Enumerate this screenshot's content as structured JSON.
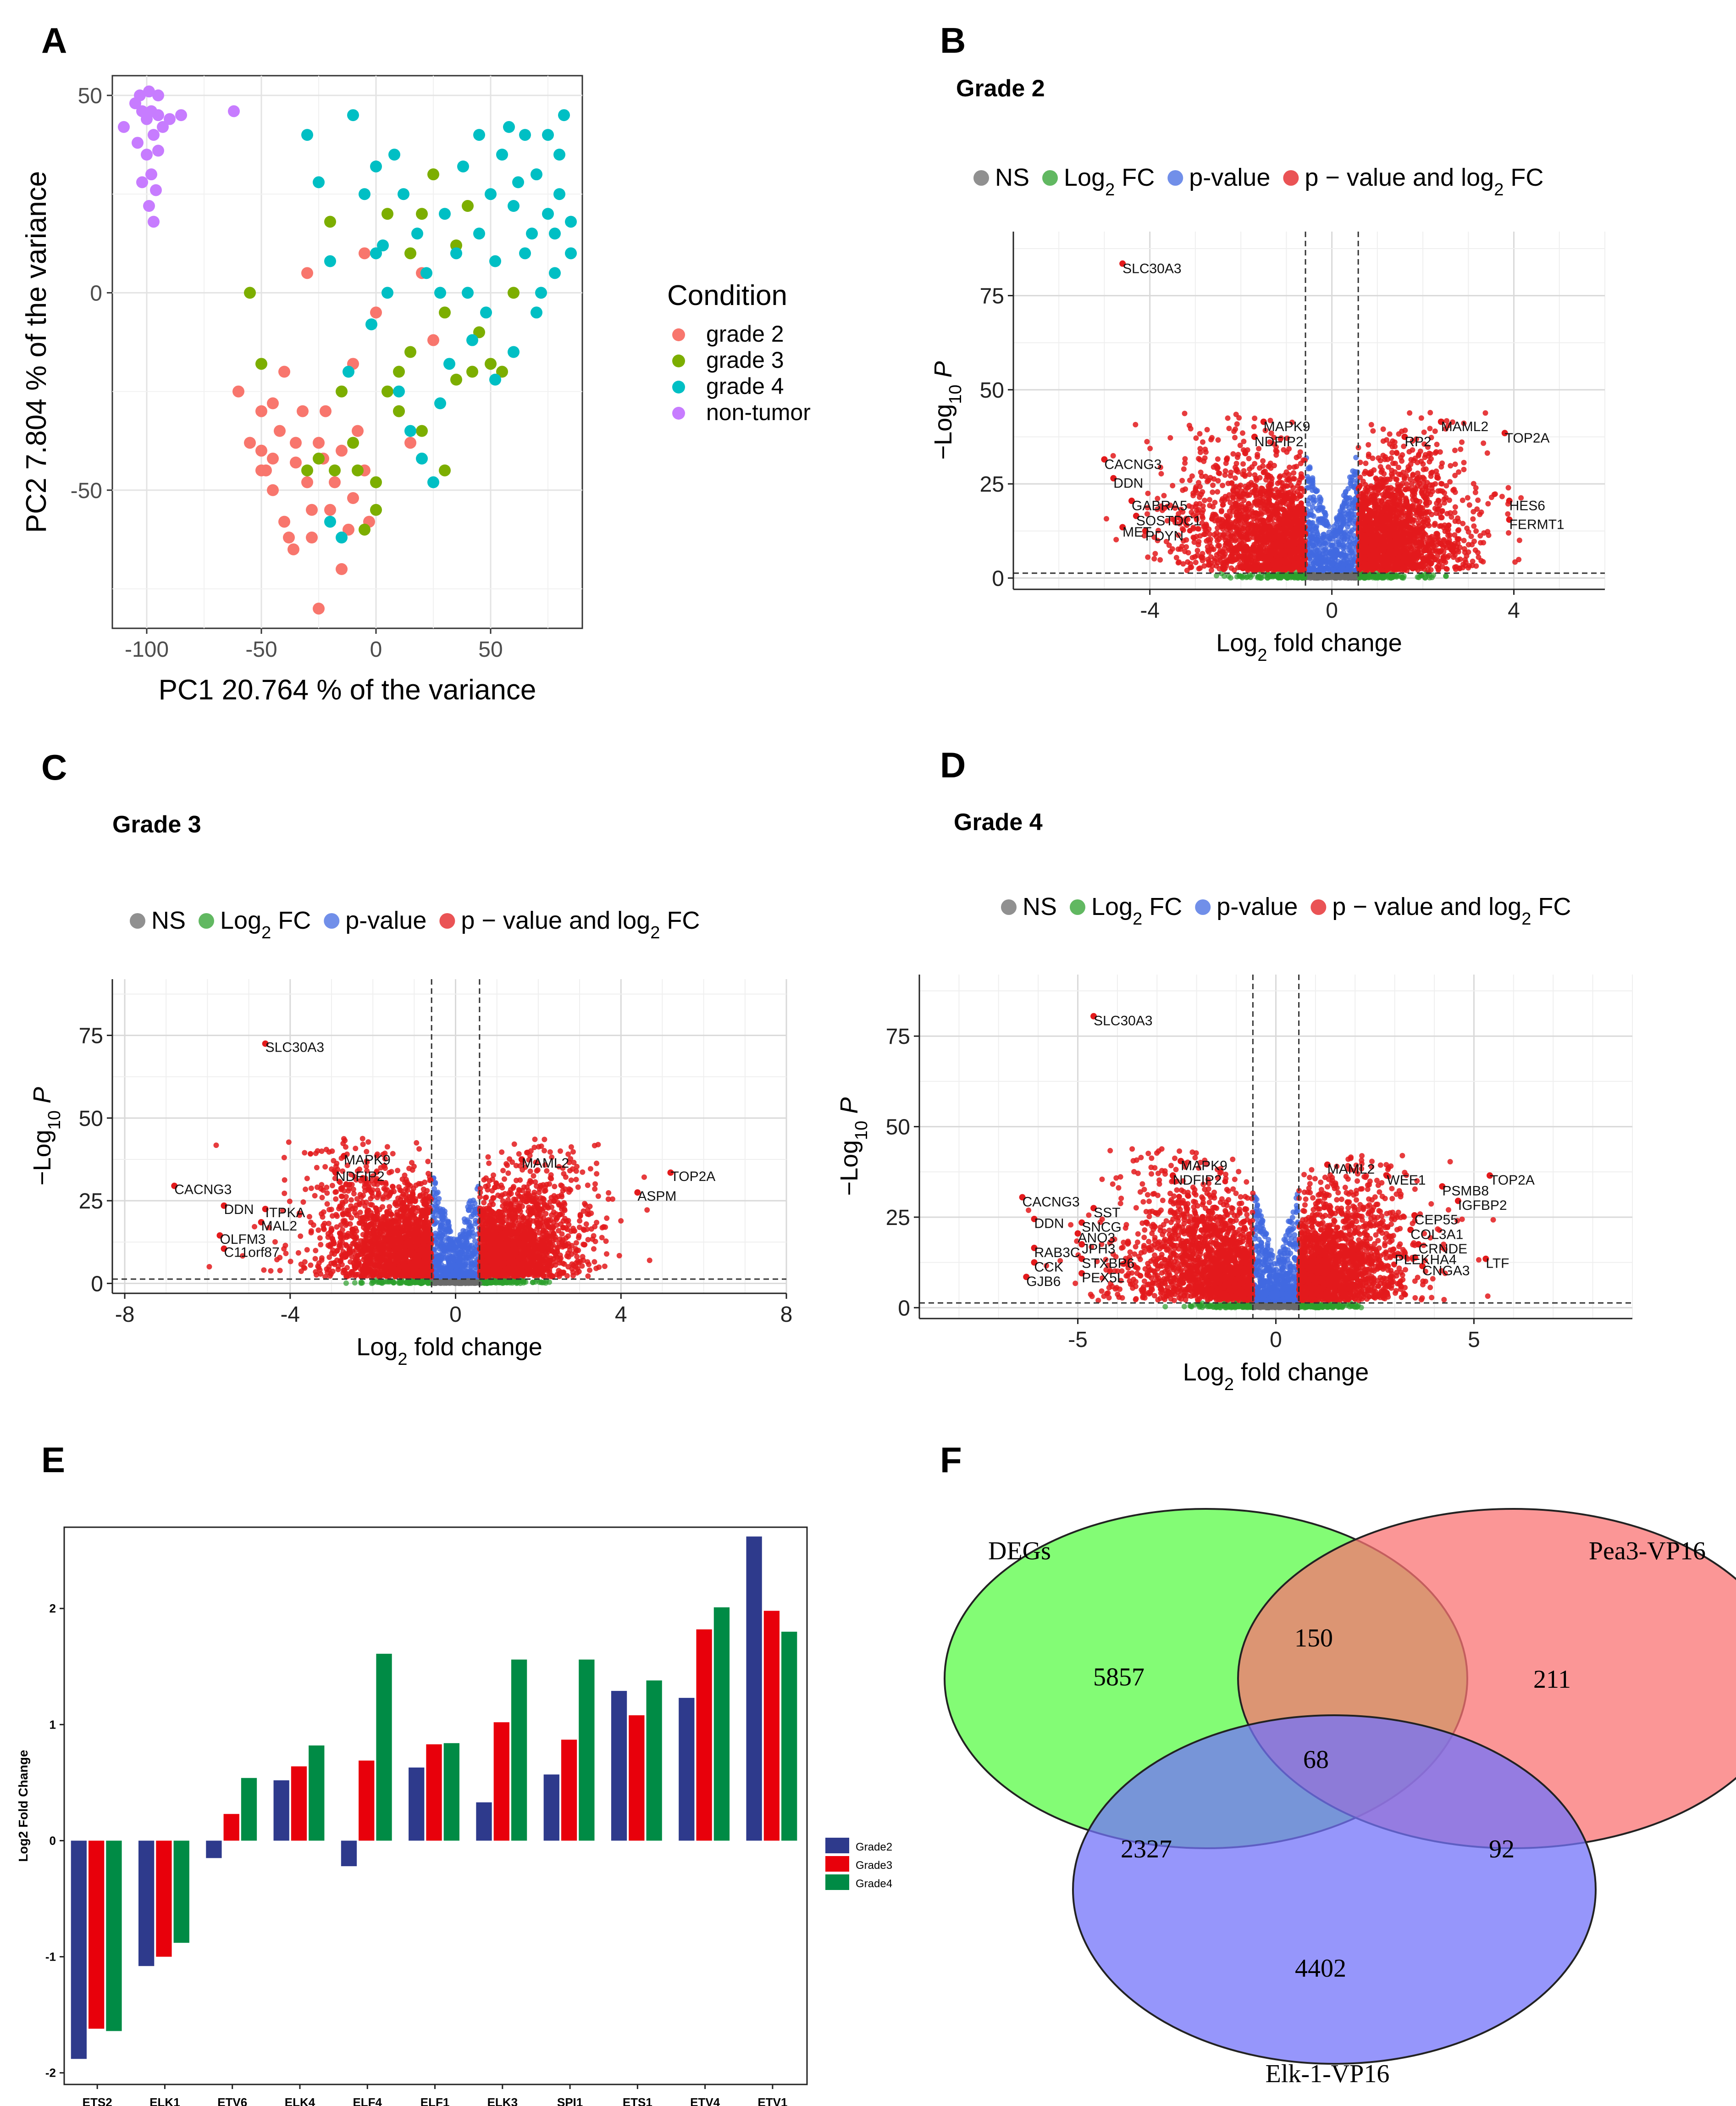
{
  "panel_letters": [
    "A",
    "B",
    "C",
    "D",
    "E",
    "F"
  ],
  "colors": {
    "grade2": "#F8766D",
    "grade3": "#7CAE00",
    "grade4": "#00BFC4",
    "nontumor": "#C77CFF",
    "ns": "#6b6b6b",
    "fc": "#2ca02c",
    "pval": "#4169E1",
    "both": "#E31A1C",
    "bar_g2": "#2E3A8C",
    "bar_g3": "#E8000B",
    "bar_g4": "#008B45",
    "venn_degs": "#7CFC6E",
    "venn_pea3": "#FA7373",
    "venn_elk1": "#7373FA"
  },
  "chart_data": [
    {
      "panel": "A",
      "type": "scatter",
      "title": "",
      "xlabel": "PC1 20.764 % of the variance",
      "ylabel": "PC2 7.804 % of the variance",
      "xlim": [
        -115,
        90
      ],
      "ylim": [
        -85,
        55
      ],
      "xticks": [
        -100,
        -50,
        0,
        50
      ],
      "yticks": [
        -50,
        0,
        50
      ],
      "legend_title": "Condition",
      "series": [
        {
          "name": "grade 2",
          "points": [
            [
              -60,
              -25
            ],
            [
              -55,
              -38
            ],
            [
              -50,
              -30
            ],
            [
              -50,
              -40
            ],
            [
              -48,
              -45
            ],
            [
              -45,
              -50
            ],
            [
              -42,
              -35
            ],
            [
              -40,
              -58
            ],
            [
              -38,
              -62
            ],
            [
              -36,
              -65
            ],
            [
              -35,
              -43
            ],
            [
              -32,
              -30
            ],
            [
              -30,
              -48
            ],
            [
              -28,
              -55
            ],
            [
              -25,
              -38
            ],
            [
              -23,
              -42
            ],
            [
              -20,
              -55
            ],
            [
              -18,
              -48
            ],
            [
              -15,
              -40
            ],
            [
              -12,
              -60
            ],
            [
              -10,
              -52
            ],
            [
              -8,
              -35
            ],
            [
              -5,
              -45
            ],
            [
              -3,
              -58
            ],
            [
              -30,
              5
            ],
            [
              -25,
              -80
            ],
            [
              -15,
              -70
            ],
            [
              -50,
              -45
            ],
            [
              -45,
              -28
            ],
            [
              -40,
              -20
            ],
            [
              -28,
              -62
            ],
            [
              -22,
              -30
            ],
            [
              -10,
              -18
            ],
            [
              -5,
              10
            ],
            [
              0,
              -5
            ],
            [
              10,
              -30
            ],
            [
              15,
              -38
            ],
            [
              20,
              5
            ],
            [
              25,
              -12
            ],
            [
              -35,
              -38
            ],
            [
              -45,
              -42
            ]
          ]
        },
        {
          "name": "grade 3",
          "points": [
            [
              -55,
              0
            ],
            [
              -50,
              -18
            ],
            [
              -30,
              -45
            ],
            [
              -25,
              -42
            ],
            [
              -20,
              18
            ],
            [
              -15,
              -25
            ],
            [
              -10,
              -38
            ],
            [
              -5,
              -60
            ],
            [
              0,
              -55
            ],
            [
              5,
              -25
            ],
            [
              10,
              -20
            ],
            [
              15,
              10
            ],
            [
              20,
              20
            ],
            [
              25,
              30
            ],
            [
              30,
              -5
            ],
            [
              35,
              12
            ],
            [
              40,
              22
            ],
            [
              45,
              -10
            ],
            [
              50,
              -18
            ],
            [
              55,
              -20
            ],
            [
              60,
              0
            ],
            [
              30,
              -45
            ],
            [
              20,
              -35
            ],
            [
              10,
              -30
            ],
            [
              0,
              -48
            ],
            [
              -8,
              -45
            ],
            [
              -18,
              -45
            ],
            [
              5,
              20
            ],
            [
              15,
              -15
            ],
            [
              35,
              -22
            ],
            [
              42,
              -20
            ]
          ]
        },
        {
          "name": "grade 4",
          "points": [
            [
              -30,
              40
            ],
            [
              -10,
              45
            ],
            [
              -5,
              25
            ],
            [
              0,
              10
            ],
            [
              5,
              0
            ],
            [
              10,
              -25
            ],
            [
              15,
              -35
            ],
            [
              20,
              -42
            ],
            [
              25,
              -48
            ],
            [
              30,
              20
            ],
            [
              35,
              10
            ],
            [
              40,
              0
            ],
            [
              45,
              15
            ],
            [
              50,
              25
            ],
            [
              55,
              35
            ],
            [
              60,
              22
            ],
            [
              65,
              10
            ],
            [
              70,
              30
            ],
            [
              75,
              40
            ],
            [
              80,
              25
            ],
            [
              82,
              45
            ],
            [
              85,
              18
            ],
            [
              78,
              5
            ],
            [
              72,
              0
            ],
            [
              68,
              15
            ],
            [
              62,
              28
            ],
            [
              58,
              42
            ],
            [
              52,
              8
            ],
            [
              48,
              -5
            ],
            [
              42,
              -12
            ],
            [
              38,
              32
            ],
            [
              32,
              -18
            ],
            [
              28,
              -28
            ],
            [
              22,
              5
            ],
            [
              18,
              15
            ],
            [
              12,
              25
            ],
            [
              8,
              35
            ],
            [
              3,
              12
            ],
            [
              -2,
              -8
            ],
            [
              -12,
              -20
            ],
            [
              -20,
              -58
            ],
            [
              -15,
              -62
            ],
            [
              60,
              -15
            ],
            [
              70,
              -5
            ],
            [
              75,
              20
            ],
            [
              80,
              35
            ],
            [
              85,
              10
            ],
            [
              45,
              40
            ],
            [
              52,
              -22
            ],
            [
              -20,
              8
            ],
            [
              -25,
              28
            ],
            [
              0,
              32
            ],
            [
              28,
              0
            ],
            [
              65,
              40
            ],
            [
              78,
              15
            ]
          ]
        },
        {
          "name": "non-tumor",
          "points": [
            [
              -110,
              42
            ],
            [
              -105,
              48
            ],
            [
              -103,
              50
            ],
            [
              -100,
              44
            ],
            [
              -98,
              46
            ],
            [
              -97,
              40
            ],
            [
              -95,
              50
            ],
            [
              -93,
              42
            ],
            [
              -100,
              35
            ],
            [
              -98,
              30
            ],
            [
              -96,
              26
            ],
            [
              -102,
              28
            ],
            [
              -99,
              22
            ],
            [
              -97,
              18
            ],
            [
              -104,
              38
            ],
            [
              -95,
              36
            ],
            [
              -90,
              44
            ],
            [
              -85,
              45
            ],
            [
              -62,
              46
            ],
            [
              -102,
              46
            ],
            [
              -99,
              51
            ],
            [
              -95,
              45
            ]
          ]
        }
      ]
    },
    {
      "panel": "B",
      "type": "scatter",
      "title": "Grade 2",
      "xlabel": "Log2 fold change",
      "ylabel": "−Log10 P",
      "xlim": [
        -7,
        6
      ],
      "ylim": [
        -3,
        92
      ],
      "xticks": [
        -4,
        0,
        4
      ],
      "yticks": [
        0,
        25,
        50,
        75
      ],
      "fc_cutoff": 0.58,
      "p_cutoff": 1.3,
      "legend": [
        "NS",
        "Log2 FC",
        "p-value",
        "p − value and log2 FC"
      ],
      "labels": [
        {
          "text": "SLC30A3",
          "x": -4.6,
          "y": 81
        },
        {
          "text": "MAPK9",
          "x": -1.5,
          "y": 39
        },
        {
          "text": "NDFIP2",
          "x": -1.7,
          "y": 35
        },
        {
          "text": "CACNG3",
          "x": -5.0,
          "y": 29
        },
        {
          "text": "DDN",
          "x": -4.8,
          "y": 24
        },
        {
          "text": "GABRA5",
          "x": -4.4,
          "y": 18
        },
        {
          "text": "SOSTDC1",
          "x": -4.3,
          "y": 14
        },
        {
          "text": "MET",
          "x": -4.6,
          "y": 11
        },
        {
          "text": "PDYN",
          "x": -4.1,
          "y": 10
        },
        {
          "text": "MAML2",
          "x": 2.4,
          "y": 39
        },
        {
          "text": "RP2",
          "x": 1.6,
          "y": 35
        },
        {
          "text": "TOP2A",
          "x": 3.8,
          "y": 36
        },
        {
          "text": "HES6",
          "x": 3.9,
          "y": 18
        },
        {
          "text": "FERMT1",
          "x": 3.9,
          "y": 13
        }
      ]
    },
    {
      "panel": "C",
      "type": "scatter",
      "title": "Grade 3",
      "xlabel": "Log2 fold change",
      "ylabel": "−Log10 P",
      "xlim": [
        -8.3,
        8
      ],
      "ylim": [
        -3,
        92
      ],
      "xticks": [
        -8,
        -4,
        0,
        4,
        8
      ],
      "yticks": [
        0,
        25,
        50,
        75
      ],
      "fc_cutoff": 0.58,
      "p_cutoff": 1.3,
      "legend": [
        "NS",
        "Log2 FC",
        "p-value",
        "p − value and log2 FC"
      ],
      "labels": [
        {
          "text": "SLC30A3",
          "x": -4.6,
          "y": 70
        },
        {
          "text": "MAPK9",
          "x": -2.7,
          "y": 36
        },
        {
          "text": "NDFIP2",
          "x": -2.9,
          "y": 31
        },
        {
          "text": "CACNG3",
          "x": -6.8,
          "y": 27
        },
        {
          "text": "DDN",
          "x": -5.6,
          "y": 21
        },
        {
          "text": "ITPKA",
          "x": -4.6,
          "y": 20
        },
        {
          "text": "MAL2",
          "x": -4.7,
          "y": 16
        },
        {
          "text": "OLFM3",
          "x": -5.7,
          "y": 12
        },
        {
          "text": "C11orf87",
          "x": -5.6,
          "y": 8
        },
        {
          "text": "MAML2",
          "x": 1.6,
          "y": 35
        },
        {
          "text": "TOP2A",
          "x": 5.2,
          "y": 31
        },
        {
          "text": "ASPM",
          "x": 4.4,
          "y": 25
        }
      ]
    },
    {
      "panel": "D",
      "type": "scatter",
      "title": "Grade 4",
      "xlabel": "Log2 fold change",
      "ylabel": "−Log10 P",
      "xlim": [
        -9,
        9
      ],
      "ylim": [
        -3,
        92
      ],
      "xticks": [
        -5,
        0,
        5
      ],
      "yticks": [
        0,
        25,
        50,
        75
      ],
      "fc_cutoff": 0.58,
      "p_cutoff": 1.3,
      "legend": [
        "NS",
        "Log2 FC",
        "p-value",
        "p − value and log2 FC"
      ],
      "labels": [
        {
          "text": "SLC30A3",
          "x": -4.6,
          "y": 78
        },
        {
          "text": "MAPK9",
          "x": -2.4,
          "y": 38
        },
        {
          "text": "NDFIP2",
          "x": -2.6,
          "y": 34
        },
        {
          "text": "CACNG3",
          "x": -6.4,
          "y": 28
        },
        {
          "text": "DDN",
          "x": -6.1,
          "y": 22
        },
        {
          "text": "SST",
          "x": -4.6,
          "y": 25
        },
        {
          "text": "SNCG",
          "x": -4.9,
          "y": 21
        },
        {
          "text": "ANO3",
          "x": -5.0,
          "y": 18
        },
        {
          "text": "JPH3",
          "x": -4.9,
          "y": 15
        },
        {
          "text": "RAB3C",
          "x": -6.1,
          "y": 14
        },
        {
          "text": "STXBP6",
          "x": -4.9,
          "y": 11
        },
        {
          "text": "CCK",
          "x": -6.1,
          "y": 10
        },
        {
          "text": "PEX5L",
          "x": -4.9,
          "y": 7
        },
        {
          "text": "GJB6",
          "x": -6.3,
          "y": 6
        },
        {
          "text": "MAML2",
          "x": 1.3,
          "y": 37
        },
        {
          "text": "WEE1",
          "x": 2.8,
          "y": 34
        },
        {
          "text": "PSMB8",
          "x": 4.2,
          "y": 31
        },
        {
          "text": "TOP2A",
          "x": 5.4,
          "y": 34
        },
        {
          "text": "IGFBP2",
          "x": 4.6,
          "y": 27
        },
        {
          "text": "CEP55",
          "x": 3.5,
          "y": 23
        },
        {
          "text": "COL3A1",
          "x": 3.4,
          "y": 19
        },
        {
          "text": "CRNDE",
          "x": 3.6,
          "y": 15
        },
        {
          "text": "PLEKHA4",
          "x": 3.0,
          "y": 12
        },
        {
          "text": "CNGA3",
          "x": 3.7,
          "y": 9
        },
        {
          "text": "LTF",
          "x": 5.3,
          "y": 11
        }
      ]
    },
    {
      "panel": "E",
      "type": "bar",
      "title": "",
      "xlabel": "",
      "ylabel": "Log2 Fold Change",
      "ylim": [
        -2.1,
        2.7
      ],
      "yticks": [
        -2,
        -1,
        0,
        1,
        2
      ],
      "categories": [
        "ETS2",
        "ELK1",
        "ETV6",
        "ELK4",
        "ELF4",
        "ELF1",
        "ELK3",
        "SPI1",
        "ETS1",
        "ETV4",
        "ETV1"
      ],
      "series": [
        {
          "name": "Grade2",
          "values": [
            -1.88,
            -1.08,
            -0.15,
            0.52,
            -0.22,
            0.63,
            0.33,
            0.57,
            1.29,
            1.23,
            2.62
          ]
        },
        {
          "name": "Grade3",
          "values": [
            -1.62,
            -1.0,
            0.23,
            0.64,
            0.69,
            0.83,
            1.02,
            0.87,
            1.08,
            1.82,
            1.98
          ]
        },
        {
          "name": "Grade4",
          "values": [
            -1.64,
            -0.88,
            0.54,
            0.82,
            1.61,
            0.84,
            1.56,
            1.56,
            1.38,
            2.01,
            1.8
          ]
        }
      ]
    },
    {
      "panel": "F",
      "type": "venn",
      "sets": [
        "DEGs",
        "Pea3-VP16",
        "Elk-1-VP16"
      ],
      "regions": {
        "degs_only": 5857,
        "degs_pea3": 150,
        "pea3_only": 211,
        "all_three": 68,
        "degs_elk1": 2327,
        "pea3_elk1": 92,
        "elk1_only": 4402
      }
    }
  ]
}
